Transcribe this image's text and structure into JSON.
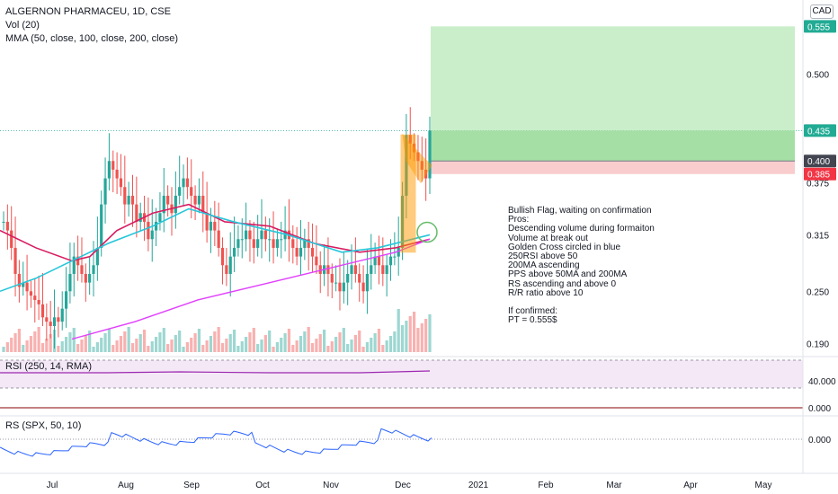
{
  "header": {
    "symbol_line": "ALGERNON PHARMACEU, 1D, CSE",
    "vol_label": "Vol (20)",
    "mma_label": "MMA (50, close, 100, close, 200, close)",
    "currency": "CAD"
  },
  "rsi_panel": {
    "label": "RSI (250, 14, RMA)",
    "ticks": [
      "40.000",
      "0.000"
    ]
  },
  "rs_panel": {
    "label": "RS (SPX, 50, 10)",
    "ticks": [
      "0.000"
    ]
  },
  "note": {
    "lines": [
      "Bullish Flag, waiting on confirmation",
      "Pros:",
      "Descending volume during formaiton",
      "Volume at break out",
      "Golden Cross circled in blue",
      "250RSI above 50",
      "200MA ascending",
      "PPS above 50MA and 200MA",
      "RS ascending and above 0",
      "R/R ratio above 10",
      "",
      "If confirmed:",
      "PT = 0.555$"
    ]
  },
  "price_tags": [
    {
      "text": "0.555",
      "color": "#22ab94"
    },
    {
      "text": "0.435",
      "color": "#22ab94"
    },
    {
      "text": "0.400",
      "color": "#434651"
    },
    {
      "text": "0.385",
      "color": "#f23645"
    }
  ],
  "colors": {
    "up": "#26a69a",
    "down": "#ef5350",
    "ma50": "#d81b60",
    "ma100": "#26c6da",
    "ma200": "#e040fb",
    "volume_ma": "#f4a460",
    "rsi": "#9c27b0",
    "rs": "#2962ff",
    "target_zone": "#b8e8b8",
    "stop_zone": "#f8c8c8",
    "flag_pole": "#ff9800"
  },
  "chart_data": {
    "type": "candlestick",
    "price_axis_ticks": [
      0.555,
      0.5,
      0.435,
      0.4,
      0.385,
      0.375,
      0.315,
      0.25,
      0.19
    ],
    "price_axis_labels": [
      "0.555",
      "0.500",
      "0.435",
      "0.400",
      "0.385",
      "0.375",
      "0.315",
      "0.250",
      "0.190"
    ],
    "time_axis_labels": [
      "Jul",
      "Aug",
      "Sep",
      "Oct",
      "Nov",
      "Dec",
      "2021",
      "Feb",
      "Mar",
      "Apr",
      "May"
    ],
    "price_range": [
      0.18,
      0.575
    ],
    "annotations": {
      "entry": 0.4,
      "stop": 0.385,
      "target": 0.555,
      "last_close": 0.435
    },
    "candles_sampled_close": [
      0.33,
      0.32,
      0.3,
      0.27,
      0.255,
      0.26,
      0.25,
      0.245,
      0.24,
      0.235,
      0.22,
      0.215,
      0.21,
      0.22,
      0.215,
      0.23,
      0.25,
      0.27,
      0.29,
      0.28,
      0.27,
      0.26,
      0.27,
      0.28,
      0.3,
      0.35,
      0.38,
      0.4,
      0.39,
      0.38,
      0.37,
      0.35,
      0.36,
      0.35,
      0.33,
      0.34,
      0.33,
      0.31,
      0.32,
      0.33,
      0.34,
      0.36,
      0.35,
      0.34,
      0.36,
      0.37,
      0.38,
      0.37,
      0.36,
      0.35,
      0.36,
      0.34,
      0.32,
      0.33,
      0.32,
      0.3,
      0.28,
      0.27,
      0.29,
      0.3,
      0.31,
      0.31,
      0.32,
      0.31,
      0.3,
      0.31,
      0.32,
      0.31,
      0.31,
      0.3,
      0.31,
      0.31,
      0.32,
      0.31,
      0.3,
      0.29,
      0.3,
      0.31,
      0.3,
      0.29,
      0.28,
      0.27,
      0.28,
      0.27,
      0.26,
      0.26,
      0.25,
      0.26,
      0.27,
      0.28,
      0.27,
      0.26,
      0.25,
      0.27,
      0.28,
      0.29,
      0.28,
      0.27,
      0.28,
      0.29,
      0.29,
      0.3,
      0.36,
      0.43,
      0.42,
      0.41,
      0.4,
      0.39,
      0.38,
      0.435
    ]
  }
}
